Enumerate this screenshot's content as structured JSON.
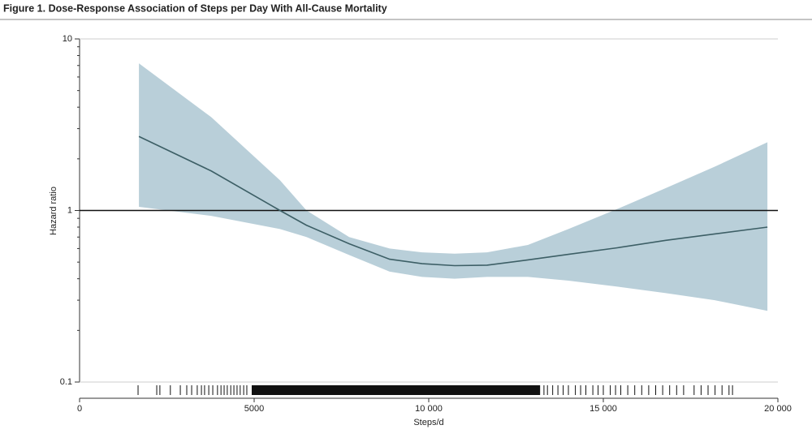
{
  "chart_data": {
    "type": "line",
    "title": "Figure 1. Dose-Response Association of Steps per Day With All-Cause Mortality",
    "xlabel": "Steps/d",
    "ylabel": "Hazard ratio",
    "x": [
      1700,
      3770,
      5740,
      6500,
      7720,
      8880,
      9810,
      10740,
      11670,
      12840,
      14000,
      15400,
      16790,
      18190,
      19700
    ],
    "line": {
      "color": "#3d5f66",
      "values": [
        2.7,
        1.7,
        1.0,
        0.82,
        0.64,
        0.52,
        0.49,
        0.477,
        0.48,
        0.515,
        0.555,
        0.606,
        0.67,
        0.73,
        0.8
      ]
    },
    "band": {
      "color": "#b9cfd9",
      "upper": [
        7.2,
        3.5,
        1.5,
        1.0,
        0.7,
        0.6,
        0.57,
        0.56,
        0.57,
        0.63,
        0.78,
        1.02,
        1.35,
        1.8,
        2.5
      ],
      "lower": [
        1.05,
        0.93,
        0.78,
        0.7,
        0.55,
        0.44,
        0.41,
        0.4,
        0.41,
        0.41,
        0.39,
        0.36,
        0.33,
        0.3,
        0.26
      ]
    },
    "reference_line": 1,
    "rug": [
      1675,
      2210,
      2300,
      2600,
      2885,
      3070,
      3210,
      3370,
      3490,
      3580,
      3700,
      3815,
      3950,
      4050,
      4140,
      4230,
      4330,
      4420,
      4510,
      4600,
      4700,
      4790,
      13300,
      13400,
      13550,
      13700,
      13850,
      14000,
      14200,
      14350,
      14500,
      14700,
      14850,
      15000,
      15200,
      15350,
      15500,
      15700,
      15900,
      16100,
      16300,
      16500,
      16700,
      16900,
      17100,
      17300,
      17600,
      17800,
      18000,
      18200,
      18400,
      18600,
      18700
    ],
    "rug_range": [
      4930,
      13190
    ],
    "xlim": [
      0,
      20000
    ],
    "xticks": [
      0,
      5000,
      {
        "value": 10000,
        "label": "10 000"
      },
      {
        "value": 15000,
        "label": "15 000"
      },
      {
        "value": 20000,
        "label": "20 000"
      }
    ],
    "ylim": [
      0.1,
      10
    ],
    "yticks": [
      0.1,
      1,
      10
    ],
    "log_y": true,
    "minor_ticks": true,
    "grid": true
  }
}
